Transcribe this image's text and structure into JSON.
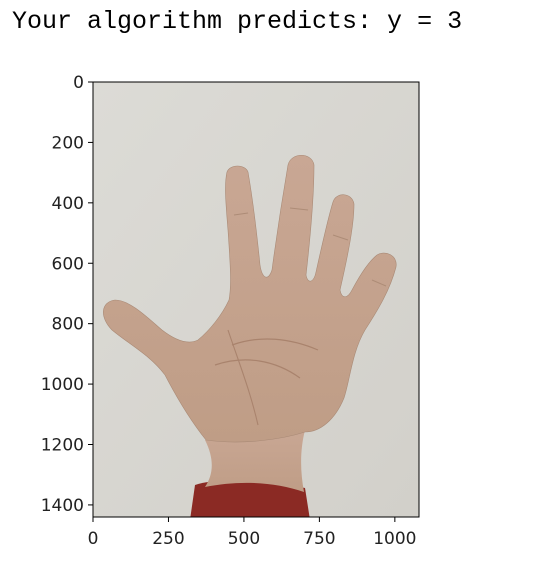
{
  "output": {
    "prefix": "Your algorithm predicts: y = ",
    "prediction": "3"
  },
  "plot": {
    "type": "image",
    "image_description": "photo of a right hand held up against a light gray wall showing five extended fingers, dark red sleeve at bottom",
    "xlim": [
      0,
      1080
    ],
    "ylim": [
      1440,
      0
    ],
    "x_ticks": [
      0,
      250,
      500,
      750,
      1000
    ],
    "y_ticks": [
      0,
      200,
      400,
      600,
      800,
      1000,
      1200,
      1400
    ],
    "colors": {
      "background": "#d8d7d2",
      "skin": "#c5a48f",
      "skin_shadow": "#b08e78",
      "sleeve": "#8b2a24"
    }
  }
}
